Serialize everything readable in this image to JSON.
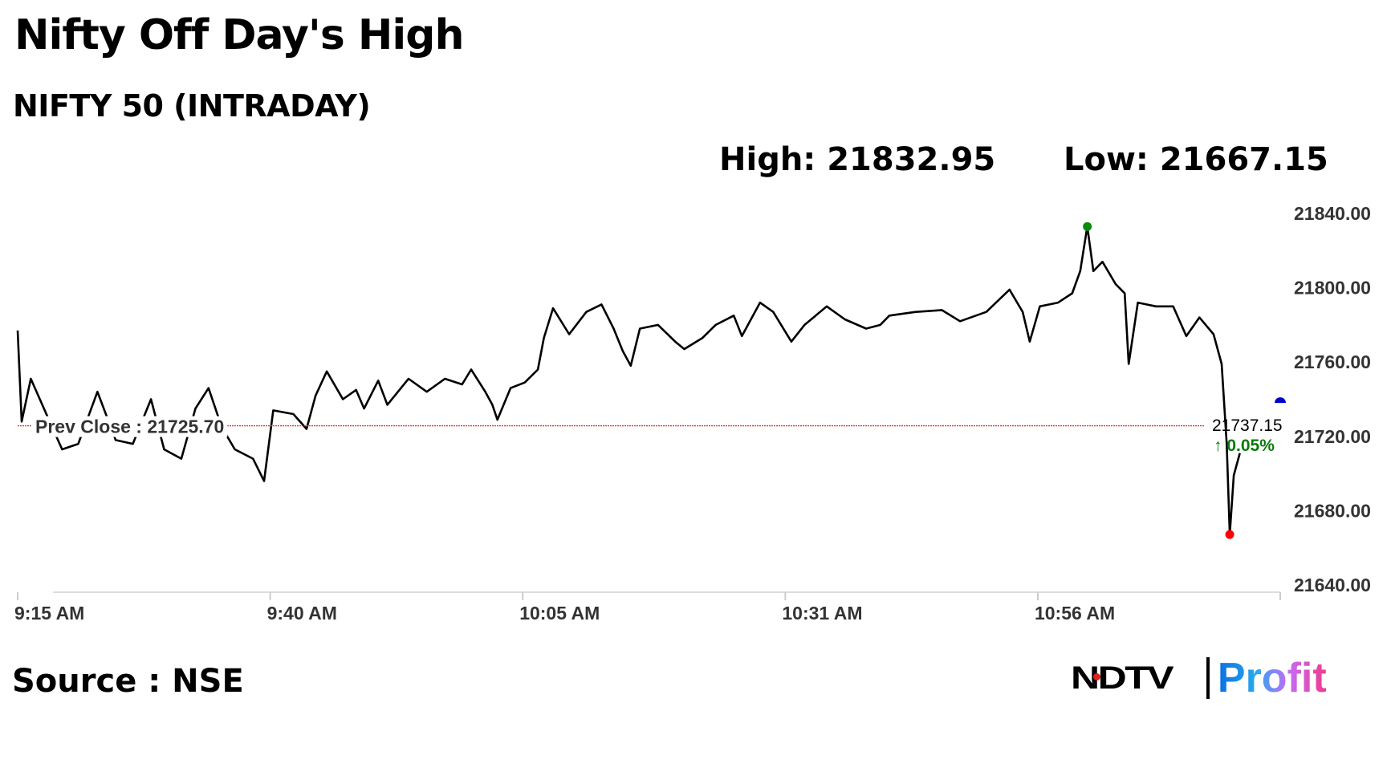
{
  "title": "Nifty Off Day's High",
  "subtitle": "NIFTY 50 (INTRADAY)",
  "stats": {
    "high": "High: 21832.95",
    "low": "Low: 21667.15"
  },
  "source": "Source : NSE",
  "logo": {
    "ndtv": "NDTV",
    "profit": "Profit"
  },
  "colors": {
    "line": "#000000",
    "high_marker": "#0a8a0a",
    "low_marker": "#ff0000",
    "current_marker": "#0000cc",
    "prev_close_line": "#d9302c",
    "change_up": "#0a7a0a"
  },
  "chart_data": {
    "type": "line",
    "title": "NIFTY 50 (INTRADAY)",
    "xlabel": "",
    "ylabel": "",
    "x_ticks": [
      "9:15 AM",
      "9:40 AM",
      "10:05 AM",
      "10:31 AM",
      "10:56 AM"
    ],
    "xlim": [
      "9:15:00",
      "11:20:00"
    ],
    "y_ticks": [
      "21840.00",
      "21800.00",
      "21760.00",
      "21720.00",
      "21680.00",
      "21640.00"
    ],
    "ylim": [
      21640,
      21840
    ],
    "y_axis_side": "right",
    "grid": false,
    "prev_close": {
      "label": "Prev Close : 21725.70",
      "value": 21725.7
    },
    "high": {
      "time": "11:00:54",
      "value": 21832.95
    },
    "low": {
      "time": "11:15:00",
      "value": 21667.15
    },
    "current": {
      "value": 21737.15,
      "label": "21737.15",
      "change": "0.05%",
      "direction": "up"
    },
    "series": [
      {
        "points": [
          [
            "9:15:00",
            21777
          ],
          [
            "9:15:24",
            21728
          ],
          [
            "9:16:18",
            21751
          ],
          [
            "9:18:00",
            21730
          ],
          [
            "9:19:24",
            21713
          ],
          [
            "9:21:00",
            21716
          ],
          [
            "9:22:54",
            21744
          ],
          [
            "9:24:42",
            21718
          ],
          [
            "9:26:24",
            21716
          ],
          [
            "9:28:12",
            21740
          ],
          [
            "9:29:30",
            21713
          ],
          [
            "9:31:12",
            21708
          ],
          [
            "9:32:36",
            21735
          ],
          [
            "9:33:54",
            21746
          ],
          [
            "9:35:12",
            21725
          ],
          [
            "9:36:30",
            21713
          ],
          [
            "9:38:18",
            21708
          ],
          [
            "9:39:24",
            21696
          ],
          [
            "9:40:18",
            21734
          ],
          [
            "9:42:18",
            21732
          ],
          [
            "9:43:36",
            21724
          ],
          [
            "9:44:30",
            21742
          ],
          [
            "9:45:36",
            21755
          ],
          [
            "9:47:12",
            21740
          ],
          [
            "9:48:30",
            21745
          ],
          [
            "9:49:18",
            21735
          ],
          [
            "9:50:42",
            21750
          ],
          [
            "9:51:36",
            21737
          ],
          [
            "9:53:42",
            21751
          ],
          [
            "9:55:30",
            21744
          ],
          [
            "9:57:18",
            21751
          ],
          [
            "9:59:00",
            21748
          ],
          [
            "9:59:54",
            21756
          ],
          [
            "10:01:18",
            21744
          ],
          [
            "10:02:00",
            21737
          ],
          [
            "10:02:30",
            21729
          ],
          [
            "10:03:48",
            21746
          ],
          [
            "10:05:12",
            21749
          ],
          [
            "10:06:30",
            21756
          ],
          [
            "10:07:06",
            21773
          ],
          [
            "10:08:00",
            21789
          ],
          [
            "10:09:36",
            21775
          ],
          [
            "10:11:18",
            21787
          ],
          [
            "10:12:48",
            21791
          ],
          [
            "10:14:00",
            21778
          ],
          [
            "10:14:54",
            21766
          ],
          [
            "10:15:42",
            21758
          ],
          [
            "10:16:36",
            21778
          ],
          [
            "10:18:24",
            21780
          ],
          [
            "10:20:06",
            21771
          ],
          [
            "10:21:00",
            21767
          ],
          [
            "10:22:48",
            21773
          ],
          [
            "10:24:06",
            21780
          ],
          [
            "10:25:54",
            21785
          ],
          [
            "10:26:42",
            21774
          ],
          [
            "10:28:30",
            21792
          ],
          [
            "10:29:48",
            21787
          ],
          [
            "10:31:36",
            21771
          ],
          [
            "10:32:54",
            21780
          ],
          [
            "10:35:06",
            21790
          ],
          [
            "10:36:54",
            21783
          ],
          [
            "10:39:00",
            21778
          ],
          [
            "10:40:24",
            21780
          ],
          [
            "10:41:18",
            21785
          ],
          [
            "10:43:54",
            21787
          ],
          [
            "10:46:30",
            21788
          ],
          [
            "10:48:18",
            21782
          ],
          [
            "10:50:54",
            21787
          ],
          [
            "10:53:12",
            21799
          ],
          [
            "10:54:30",
            21787
          ],
          [
            "10:55:12",
            21771
          ],
          [
            "10:56:12",
            21790
          ],
          [
            "10:58:00",
            21792
          ],
          [
            "10:59:24",
            21797
          ],
          [
            "11:00:12",
            21809
          ],
          [
            "11:00:54",
            21832.95
          ],
          [
            "11:01:30",
            21809
          ],
          [
            "11:02:24",
            21814
          ],
          [
            "11:03:42",
            21802
          ],
          [
            "11:04:36",
            21797
          ],
          [
            "11:05:00",
            21759
          ],
          [
            "11:05:54",
            21792
          ],
          [
            "11:07:42",
            21790
          ],
          [
            "11:09:24",
            21790
          ],
          [
            "11:10:42",
            21774
          ],
          [
            "11:12:00",
            21784
          ],
          [
            "11:13:24",
            21775
          ],
          [
            "11:14:12",
            21759
          ],
          [
            "11:14:42",
            21716
          ],
          [
            "11:15:00",
            21667.15
          ],
          [
            "11:15:24",
            21699
          ],
          [
            "11:16:00",
            21711
          ]
        ]
      }
    ]
  }
}
